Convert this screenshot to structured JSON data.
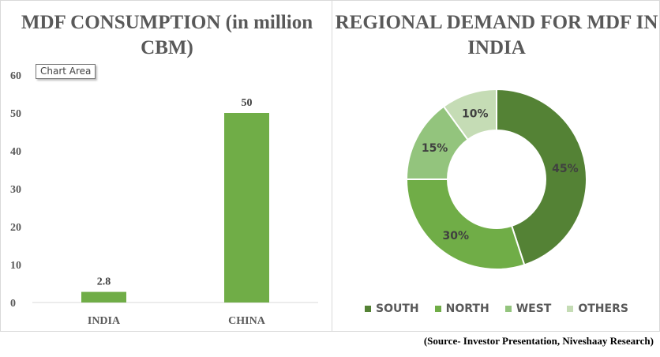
{
  "tooltip": "Chart Area",
  "source": "(Source- Investor Presentation, Niveshaay Research)",
  "chart_data": [
    {
      "type": "bar",
      "title": "MDF CONSUMPTION (in million CBM)",
      "categories": [
        "INDIA",
        "CHINA"
      ],
      "values": [
        2.8,
        50
      ],
      "data_labels": [
        "2.8",
        "50"
      ],
      "ylim": [
        0,
        60
      ],
      "yticks": [
        0,
        10,
        20,
        30,
        40,
        50,
        60
      ],
      "grid": false,
      "color": "#70ad47"
    },
    {
      "type": "pie",
      "donut": true,
      "title": "REGIONAL DEMAND FOR MDF IN INDIA",
      "labels": [
        "SOUTH",
        "NORTH",
        "WEST",
        "OTHERS"
      ],
      "values": [
        45,
        30,
        15,
        10
      ],
      "data_labels": [
        "45%",
        "30%",
        "15%",
        "10%"
      ],
      "colors": [
        "#548235",
        "#70ad47",
        "#93c47d",
        "#c5dcb5"
      ],
      "legend": "bottom"
    }
  ]
}
